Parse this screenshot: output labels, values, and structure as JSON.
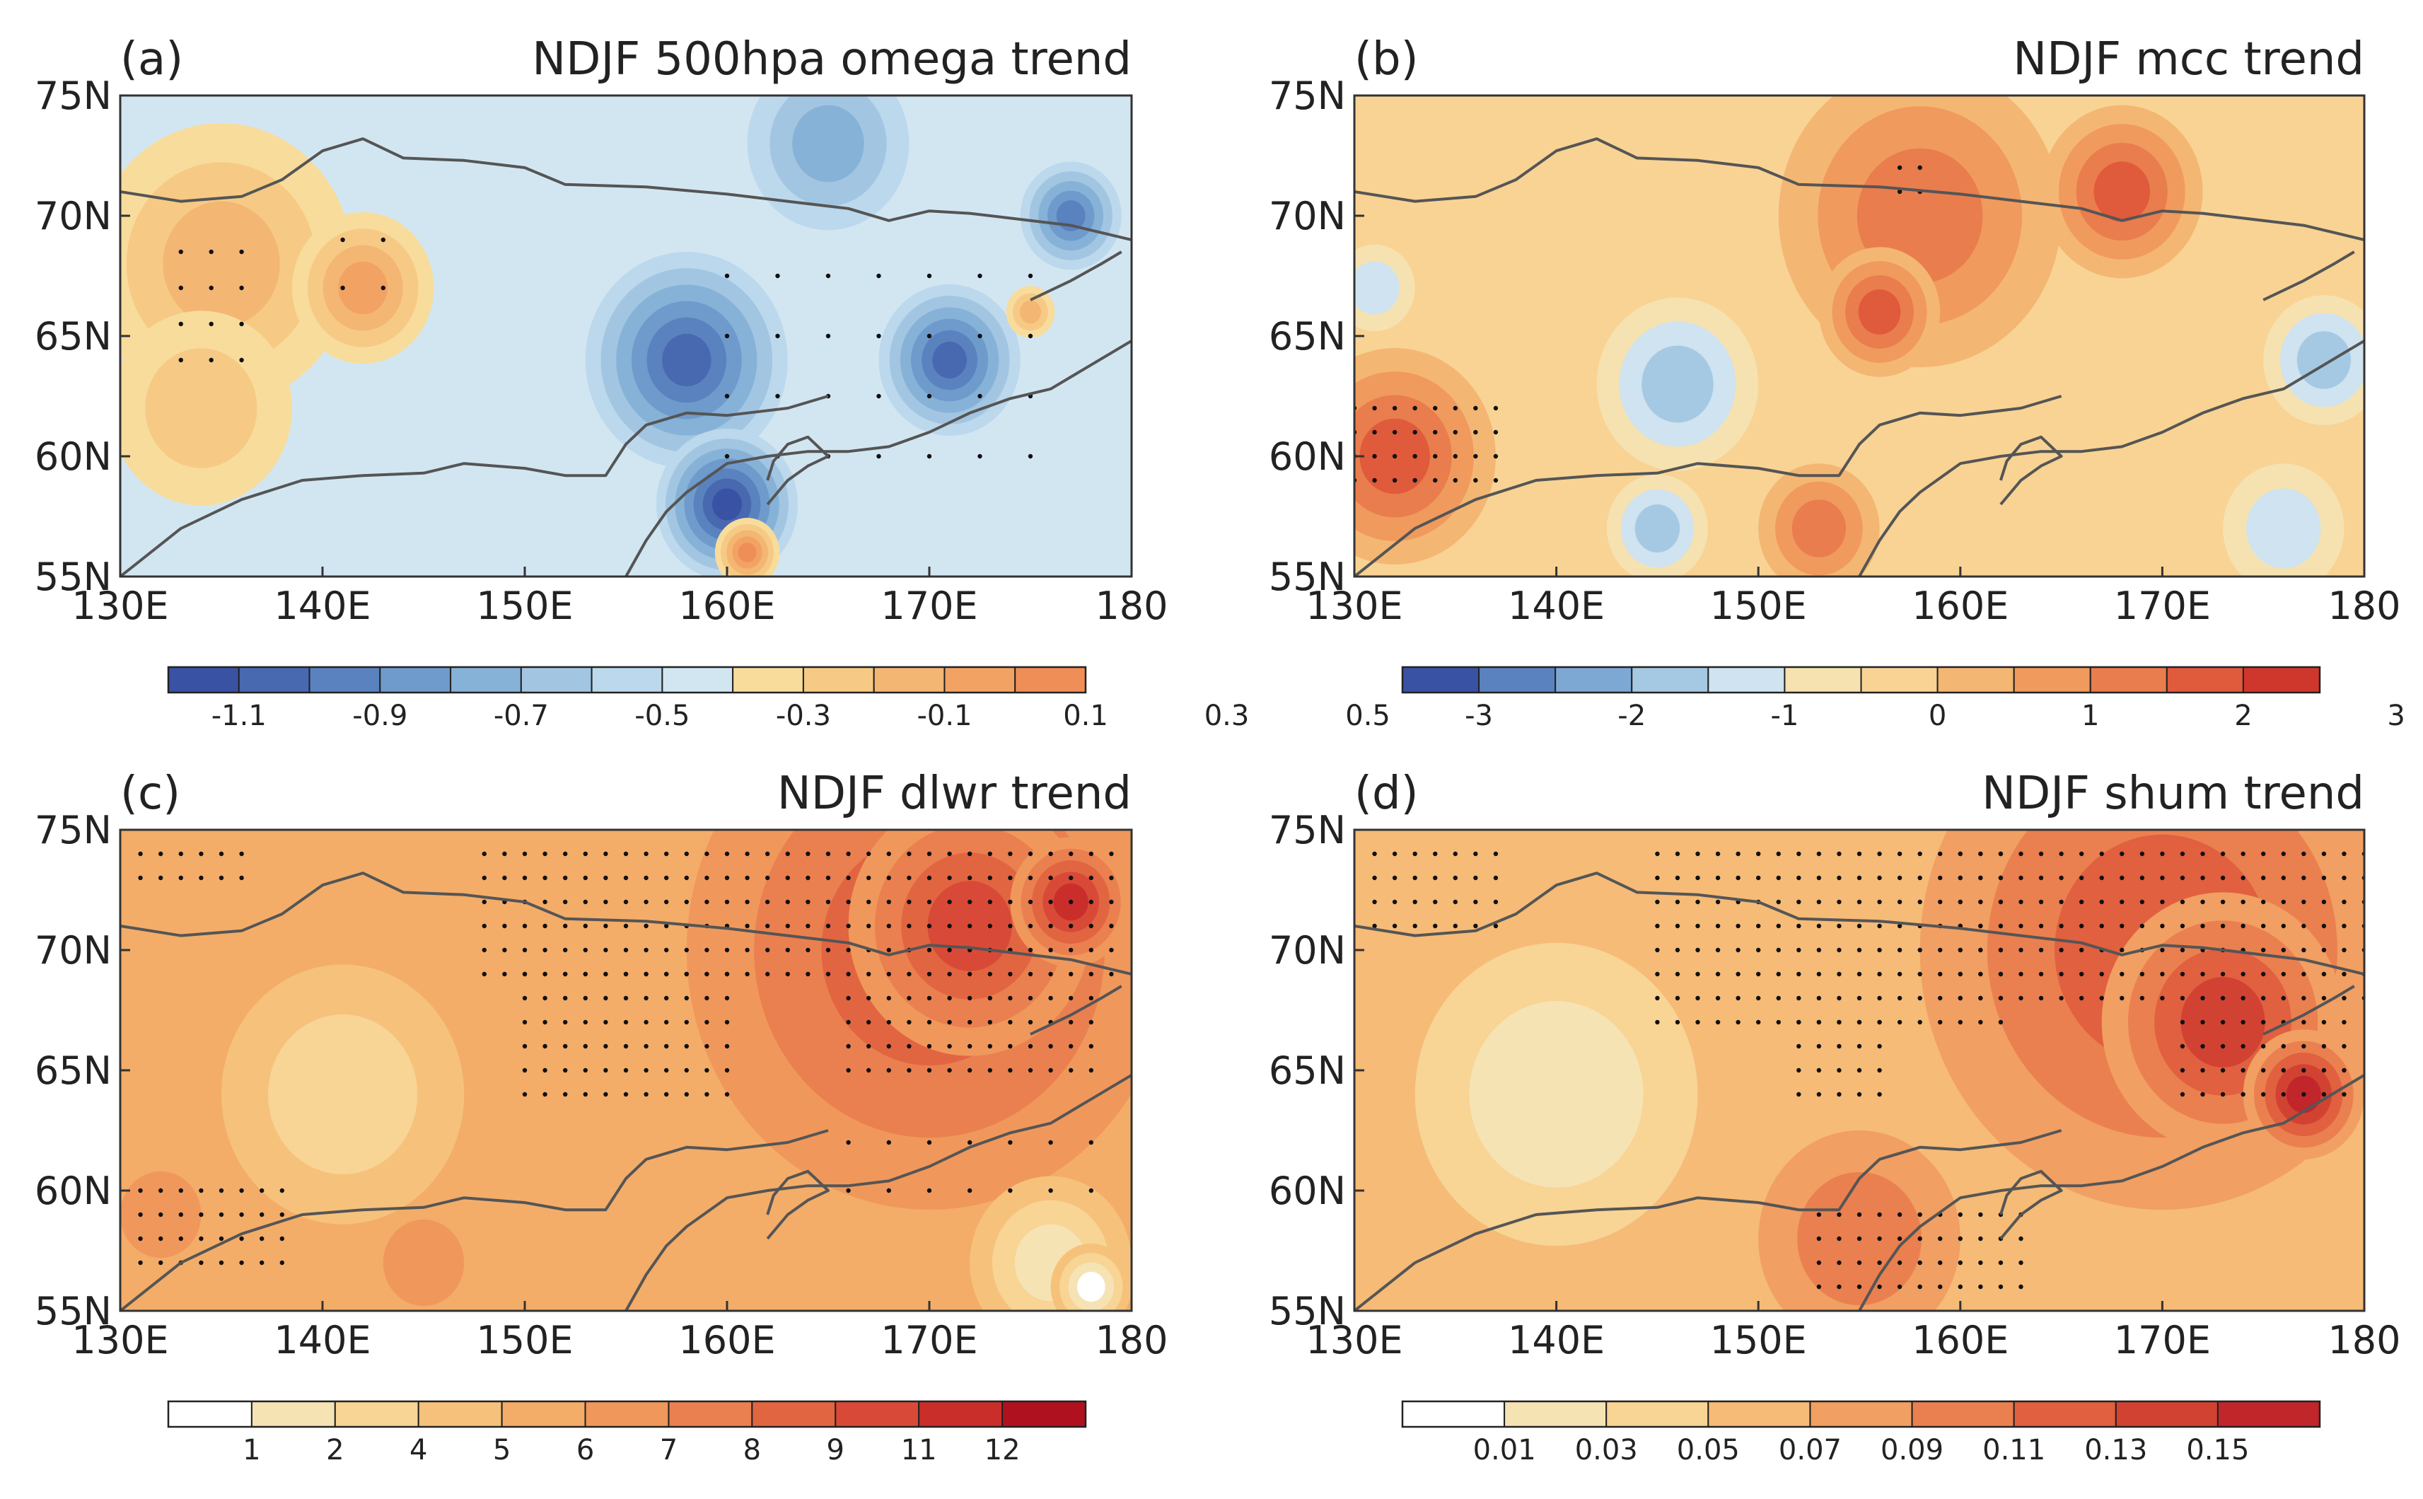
{
  "chart_data": [
    {
      "type": "contour-map",
      "panel": "(a)",
      "title": "NDJF 500hpa omega trend",
      "x_ticks": [
        "130E",
        "140E",
        "150E",
        "160E",
        "170E",
        "180"
      ],
      "y_ticks": [
        "75N",
        "70N",
        "65N",
        "60N",
        "55N"
      ],
      "lon_range": [
        130,
        180
      ],
      "lat_range": [
        55,
        75
      ],
      "colorbar": {
        "labels": [
          "-1.1",
          "-0.9",
          "-0.7",
          "-0.5",
          "-0.3",
          "-0.1",
          "0.1",
          "0.3",
          "0.5"
        ],
        "colors": [
          "#3a52a3",
          "#4868b0",
          "#5a82bf",
          "#6e9bcc",
          "#87b2d8",
          "#a2c6e2",
          "#bcd8ec",
          "#d2e6f2",
          "#f8dc9c",
          "#f6ca85",
          "#f4b673",
          "#f2a364",
          "#ef8f57"
        ]
      },
      "features": [
        {
          "kind": "blob",
          "lon": 135,
          "lat": 68,
          "r": 6.5,
          "level": 10
        },
        {
          "kind": "blob",
          "lon": 142,
          "lat": 67,
          "r": 3.5,
          "level": 11
        },
        {
          "kind": "blob",
          "lon": 134,
          "lat": 62,
          "r": 4.5,
          "level": 9
        },
        {
          "kind": "blob",
          "lon": 158,
          "lat": 64,
          "r": 5,
          "level": 1
        },
        {
          "kind": "blob",
          "lon": 160,
          "lat": 58,
          "r": 3.5,
          "level": 0
        },
        {
          "kind": "blob",
          "lon": 171,
          "lat": 64,
          "r": 3.5,
          "level": 1
        },
        {
          "kind": "blob",
          "lon": 177,
          "lat": 70,
          "r": 2.5,
          "level": 2
        },
        {
          "kind": "blob",
          "lon": 165,
          "lat": 73,
          "r": 4,
          "level": 4
        },
        {
          "kind": "blob",
          "lon": 161,
          "lat": 56,
          "r": 1.6,
          "level": 12
        },
        {
          "kind": "blob",
          "lon": 175,
          "lat": 66,
          "r": 1.2,
          "level": 10
        }
      ]
    },
    {
      "type": "contour-map",
      "panel": "(b)",
      "title": "NDJF mcc trend",
      "x_ticks": [
        "130E",
        "140E",
        "150E",
        "160E",
        "170E",
        "180"
      ],
      "y_ticks": [
        "75N",
        "70N",
        "65N",
        "60N",
        "55N"
      ],
      "lon_range": [
        130,
        180
      ],
      "lat_range": [
        55,
        75
      ],
      "colorbar": {
        "labels": [
          "-3",
          "-2",
          "-1",
          "0",
          "1",
          "2",
          "3"
        ],
        "colors": [
          "#3a52a3",
          "#5a82bf",
          "#7ea8d4",
          "#a6c9e3",
          "#cfe3f0",
          "#f6e2b0",
          "#f8d394",
          "#f4b673",
          "#f09a5e",
          "#e97d4d",
          "#e05a3c",
          "#d0372c"
        ]
      },
      "features": [
        {
          "kind": "blob",
          "lon": 158,
          "lat": 70,
          "r": 7,
          "level": 9
        },
        {
          "kind": "blob",
          "lon": 156,
          "lat": 66,
          "r": 3,
          "level": 10
        },
        {
          "kind": "blob",
          "lon": 168,
          "lat": 71,
          "r": 4,
          "level": 10
        },
        {
          "kind": "blob",
          "lon": 132,
          "lat": 60,
          "r": 5,
          "level": 10
        },
        {
          "kind": "blob",
          "lon": 153,
          "lat": 57,
          "r": 3,
          "level": 9
        },
        {
          "kind": "blob",
          "lon": 146,
          "lat": 63,
          "r": 4,
          "level": 3
        },
        {
          "kind": "blob",
          "lon": 145,
          "lat": 57,
          "r": 2.5,
          "level": 3
        },
        {
          "kind": "blob",
          "lon": 178,
          "lat": 64,
          "r": 3,
          "level": 3
        },
        {
          "kind": "blob",
          "lon": 176,
          "lat": 57,
          "r": 3,
          "level": 4
        },
        {
          "kind": "blob",
          "lon": 131,
          "lat": 67,
          "r": 2,
          "level": 4
        }
      ]
    },
    {
      "type": "contour-map",
      "panel": "(c)",
      "title": "NDJF dlwr trend",
      "x_ticks": [
        "130E",
        "140E",
        "150E",
        "160E",
        "170E",
        "180"
      ],
      "y_ticks": [
        "75N",
        "70N",
        "65N",
        "60N",
        "55N"
      ],
      "lon_range": [
        130,
        180
      ],
      "lat_range": [
        55,
        75
      ],
      "colorbar": {
        "labels": [
          "1",
          "2",
          "4",
          "5",
          "6",
          "7",
          "8",
          "9",
          "11",
          "12"
        ],
        "colors": [
          "#ffffff",
          "#f6e3b4",
          "#f8d495",
          "#f6c27b",
          "#f3ad69",
          "#f0985b",
          "#ea804f",
          "#e26542",
          "#d84a37",
          "#c92e2a",
          "#b0111f"
        ]
      },
      "features": [
        {
          "kind": "blob",
          "lon": 170,
          "lat": 70,
          "r": 12,
          "level": 7
        },
        {
          "kind": "blob",
          "lon": 172,
          "lat": 71,
          "r": 6,
          "level": 8
        },
        {
          "kind": "blob",
          "lon": 177,
          "lat": 72,
          "r": 3,
          "level": 9
        },
        {
          "kind": "blob",
          "lon": 141,
          "lat": 64,
          "r": 6,
          "level": 2
        },
        {
          "kind": "blob",
          "lon": 176,
          "lat": 57,
          "r": 4,
          "level": 1
        },
        {
          "kind": "blob",
          "lon": 178,
          "lat": 56,
          "r": 2,
          "level": 0
        },
        {
          "kind": "blob",
          "lon": 145,
          "lat": 57,
          "r": 2,
          "level": 5
        },
        {
          "kind": "blob",
          "lon": 132,
          "lat": 59,
          "r": 2,
          "level": 5
        }
      ]
    },
    {
      "type": "contour-map",
      "panel": "(d)",
      "title": "NDJF shum trend",
      "x_ticks": [
        "130E",
        "140E",
        "150E",
        "160E",
        "170E",
        "180"
      ],
      "y_ticks": [
        "75N",
        "70N",
        "65N",
        "60N",
        "55N"
      ],
      "lon_range": [
        130,
        180
      ],
      "lat_range": [
        55,
        75
      ],
      "colorbar": {
        "labels": [
          "0.01",
          "0.03",
          "0.05",
          "0.07",
          "0.09",
          "0.11",
          "0.13",
          "0.15"
        ],
        "colors": [
          "#ffffff",
          "#f6e3b4",
          "#f8d495",
          "#f5bb77",
          "#f19f62",
          "#ea804f",
          "#e0603f",
          "#d24232",
          "#c0262a"
        ]
      },
      "features": [
        {
          "kind": "blob",
          "lon": 170,
          "lat": 70,
          "r": 12,
          "level": 6
        },
        {
          "kind": "blob",
          "lon": 173,
          "lat": 67,
          "r": 6,
          "level": 7
        },
        {
          "kind": "blob",
          "lon": 177,
          "lat": 64,
          "r": 3,
          "level": 8
        },
        {
          "kind": "blob",
          "lon": 140,
          "lat": 64,
          "r": 7,
          "level": 1
        },
        {
          "kind": "blob",
          "lon": 155,
          "lat": 58,
          "r": 5,
          "level": 5
        }
      ]
    }
  ]
}
